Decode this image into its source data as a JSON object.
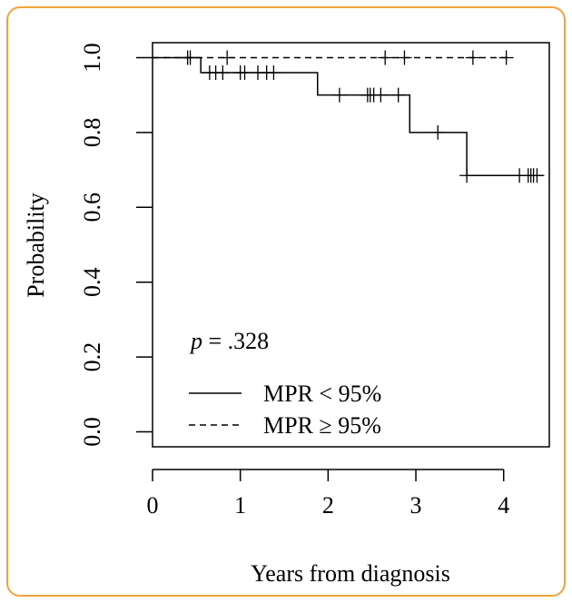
{
  "chart_data": {
    "type": "survival",
    "x_label": "Years from diagnosis",
    "y_label": "Probability",
    "annotation": {
      "italic": "p",
      "text": "= .328"
    },
    "xlim": [
      0,
      4.52
    ],
    "ylim": [
      -0.04,
      1.04
    ],
    "xticks": [
      0,
      1,
      2,
      3,
      4
    ],
    "yticks": [
      {
        "value": 0,
        "label": "0.0"
      },
      {
        "value": 0.2,
        "label": "0.2"
      },
      {
        "value": 0.4,
        "label": "0.4"
      },
      {
        "value": 0.6,
        "label": "0.6"
      },
      {
        "value": 0.8,
        "label": "0.8"
      },
      {
        "value": 1,
        "label": "1.0"
      }
    ],
    "series": [
      {
        "name": "MPR < 95%",
        "color": "#000000",
        "dash": "solid",
        "x": [
          0,
          0.55,
          1.88,
          2.93,
          3.58,
          4.45
        ],
        "values": [
          1,
          0.96,
          0.9,
          0.8,
          0.685,
          0.685
        ],
        "censor_x": [
          0.4,
          0.43,
          0.65,
          0.72,
          0.8,
          1.0,
          1.05,
          1.2,
          1.3,
          1.38,
          2.13,
          2.45,
          2.48,
          2.52,
          2.6,
          2.8,
          3.25,
          3.58,
          4.18,
          4.28,
          4.31,
          4.34,
          4.38
        ],
        "censor_values": [
          1,
          1,
          0.96,
          0.96,
          0.96,
          0.96,
          0.96,
          0.96,
          0.96,
          0.96,
          0.9,
          0.9,
          0.9,
          0.9,
          0.9,
          0.9,
          0.8,
          0.685,
          0.685,
          0.685,
          0.685,
          0.685,
          0.685
        ]
      },
      {
        "name": "MPR ≥ 95%",
        "color": "#000000",
        "dash": "dashed",
        "x": [
          0,
          4.05
        ],
        "values": [
          1,
          1
        ],
        "censor_x": [
          0.85,
          2.65,
          2.87,
          3.65,
          4.03
        ],
        "censor_values": [
          1,
          1,
          1,
          1,
          1
        ]
      }
    ]
  }
}
